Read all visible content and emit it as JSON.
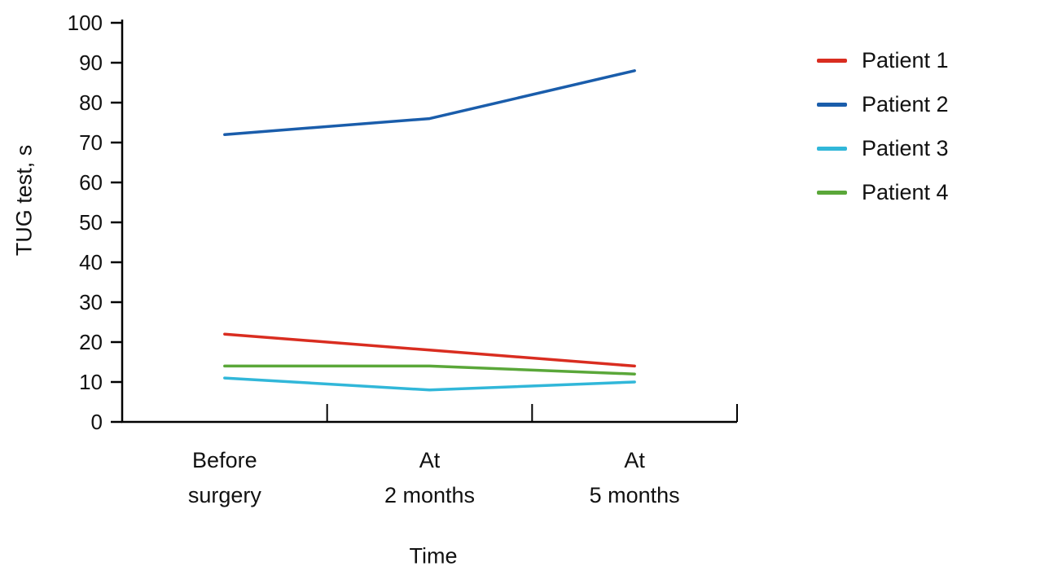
{
  "chart_data": {
    "type": "line",
    "title": "",
    "categories": [
      "Before\nsurgery",
      "At\n2 months",
      "At\n5 months"
    ],
    "series": [
      {
        "name": "Patient 1",
        "color": "#d92d20",
        "values": [
          22,
          18,
          14
        ]
      },
      {
        "name": "Patient 2",
        "color": "#1a5dab",
        "values": [
          72,
          76,
          88
        ]
      },
      {
        "name": "Patient 3",
        "color": "#31b7d9",
        "values": [
          11,
          8,
          10
        ]
      },
      {
        "name": "Patient 4",
        "color": "#5aa739",
        "values": [
          14,
          14,
          12
        ]
      }
    ],
    "xlabel": "Time",
    "ylabel": "TUG test, s",
    "ylim": [
      0,
      100
    ],
    "ytick_step": 10,
    "grid": false,
    "legend_position": "top-right",
    "axis_color": "#000000"
  }
}
